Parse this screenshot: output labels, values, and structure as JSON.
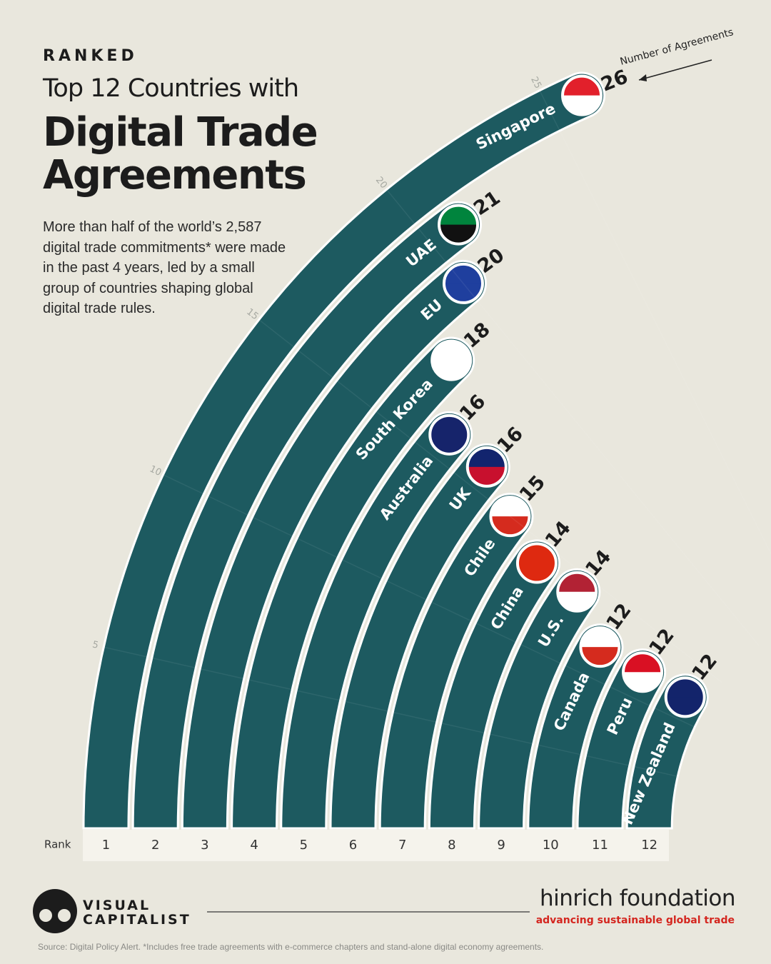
{
  "header": {
    "eyebrow": "RANKED",
    "subtitle": "Top 12 Countries with",
    "title": "Digital Trade Agreements",
    "description": "More than half of the world’s 2,587 digital trade commitments* were made in the past 4 years, led by a small group of countries shaping global digital trade rules."
  },
  "chart_data": {
    "type": "radial-bar",
    "categories": [
      "Singapore",
      "UAE",
      "EU",
      "South Korea",
      "Australia",
      "UK",
      "Chile",
      "China",
      "U.S.",
      "Canada",
      "Peru",
      "New Zealand"
    ],
    "values": [
      26,
      21,
      20,
      18,
      16,
      16,
      15,
      14,
      14,
      12,
      12,
      12
    ],
    "color": "#1d5a60",
    "ranks": [
      1,
      2,
      3,
      4,
      5,
      6,
      7,
      8,
      9,
      10,
      11,
      12
    ],
    "rank_label": "Rank",
    "annotation": "Number of Agreements",
    "ylim": [
      0,
      26
    ],
    "yticks": [
      5,
      10,
      15,
      20,
      25
    ],
    "grid": true
  },
  "footer": {
    "brand_top": "VISUAL",
    "brand_bottom": "CAPITALIST",
    "partner": "hinrich foundation",
    "partner_tagline": "advancing sustainable global trade",
    "source": "Source: Digital Policy Alert. *Includes free trade agreements with e-commerce chapters and stand-alone digital economy agreements."
  }
}
